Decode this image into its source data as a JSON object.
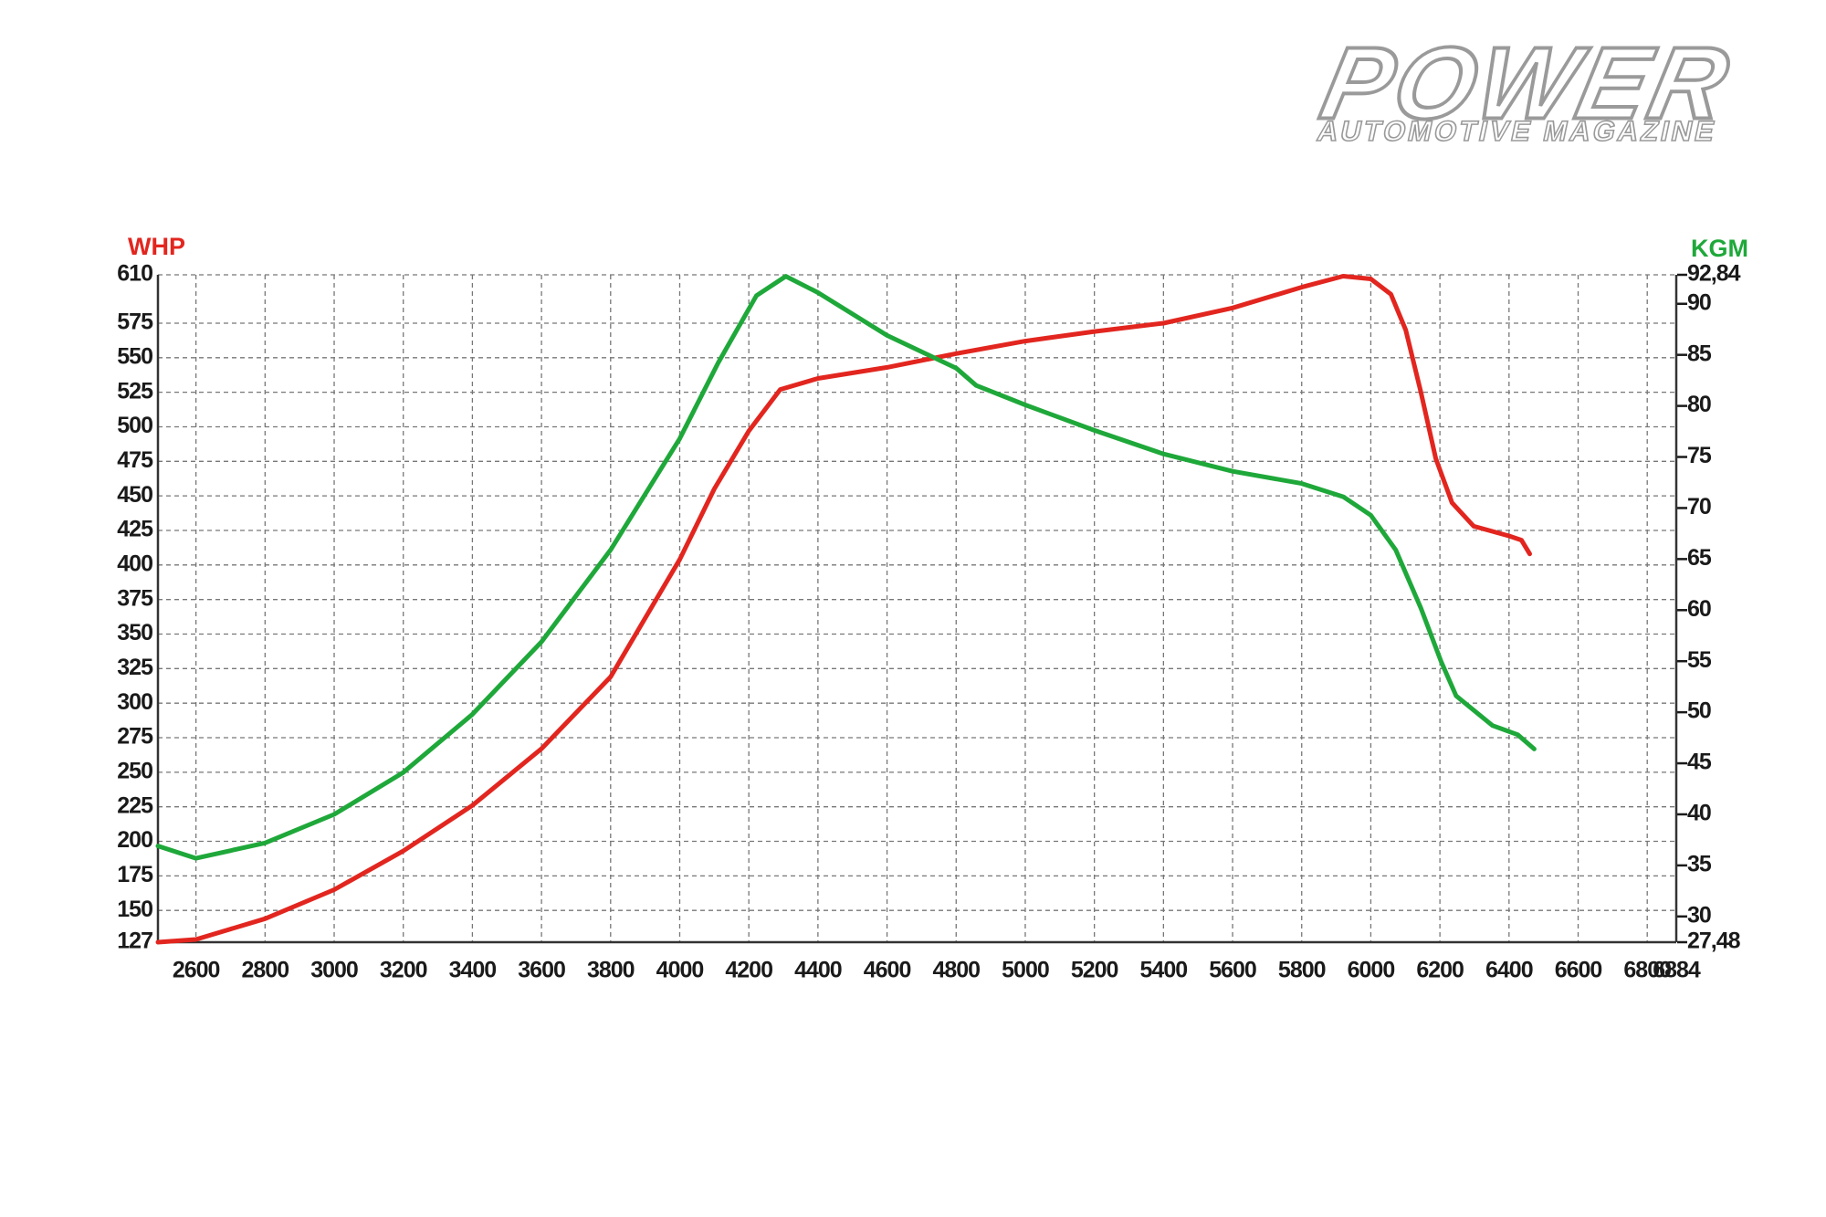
{
  "logo": {
    "title": "POWER",
    "subtitle": "AUTOMOTIVE MAGAZINE"
  },
  "chart_data": {
    "type": "line",
    "y_label": "WHP",
    "y2_label": "KGM",
    "xlim": [
      2490,
      6884
    ],
    "xticks": [
      2600,
      2800,
      3000,
      3200,
      3400,
      3600,
      3800,
      4000,
      4200,
      4400,
      4600,
      4800,
      5000,
      5200,
      5400,
      5600,
      5800,
      6000,
      6200,
      6400,
      6600,
      6800,
      6884
    ],
    "ylim": [
      127,
      610
    ],
    "yticks": [
      127,
      150,
      175,
      200,
      225,
      250,
      275,
      300,
      325,
      350,
      375,
      400,
      425,
      450,
      475,
      500,
      525,
      550,
      575,
      610
    ],
    "y2lim": [
      27.48,
      92.84
    ],
    "y2ticks": [
      {
        "value": 27.48,
        "label": "27,48"
      },
      30,
      35,
      40,
      45,
      50,
      55,
      60,
      65,
      70,
      75,
      80,
      85,
      90,
      {
        "value": 92.84,
        "label": "92,84"
      }
    ],
    "grid": true,
    "series": [
      {
        "name": "WHP",
        "color": "#e2261f",
        "axis": "y",
        "x": [
          2490,
          2600,
          2800,
          3000,
          3200,
          3400,
          3600,
          3800,
          4000,
          4100,
          4200,
          4291,
          4400,
          4600,
          4800,
          5000,
          5200,
          5400,
          5600,
          5800,
          5920,
          6000,
          6058,
          6101,
          6145,
          6188,
          6235,
          6298,
          6400,
          6436,
          6460
        ],
        "values": [
          127,
          129,
          144,
          165,
          193,
          226,
          267,
          319,
          404,
          455,
          497,
          527,
          535,
          543,
          553,
          562,
          569,
          575,
          586,
          601,
          609,
          607,
          596,
          570,
          525,
          477,
          445,
          428,
          421,
          418,
          408
        ]
      },
      {
        "name": "KGM",
        "color": "#1fa83a",
        "axis": "y2",
        "x": [
          2490,
          2600,
          2800,
          3000,
          3200,
          3400,
          3600,
          3800,
          4000,
          4111,
          4222,
          4307,
          4400,
          4600,
          4800,
          4858,
          5000,
          5200,
          5400,
          5600,
          5800,
          5920,
          6000,
          6072,
          6145,
          6203,
          6247,
          6352,
          6425,
          6473
        ],
        "values": [
          36.9,
          35.7,
          37.2,
          40.0,
          44.1,
          49.8,
          56.9,
          65.9,
          76.8,
          84.2,
          90.8,
          92.7,
          91.1,
          86.9,
          83.7,
          82.0,
          80.1,
          77.6,
          75.3,
          73.6,
          72.4,
          71.1,
          69.3,
          65.9,
          60.2,
          55.0,
          51.6,
          48.7,
          47.8,
          46.4
        ]
      }
    ]
  }
}
